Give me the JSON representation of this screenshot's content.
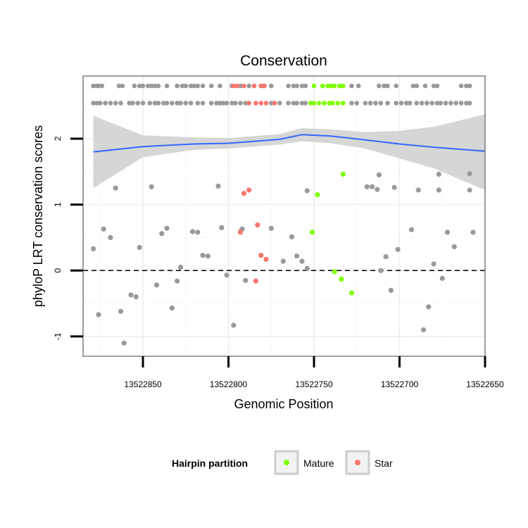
{
  "chart_data": {
    "type": "scatter",
    "title": "Conservation",
    "xlabel": "Genomic Position",
    "ylabel": "phyloP LRT conservation scores",
    "x_reversed": true,
    "xlim": [
      13522650,
      13522885
    ],
    "ylim": [
      -1.3,
      2.95
    ],
    "x_ticks": [
      13522850,
      13522800,
      13522750,
      13522700,
      13522650
    ],
    "x_tick_labels": [
      "13522850",
      "13522800",
      "13522750",
      "13522700",
      "13522650"
    ],
    "y_ticks": [
      -1,
      0,
      1,
      2
    ],
    "y_tick_labels": [
      "-1",
      "0",
      "1",
      "2"
    ],
    "grid": true,
    "reference_line": {
      "y": 0,
      "style": "dashed",
      "color": "#000000"
    },
    "legend": {
      "title": "Hairpin partition",
      "position": "bottom",
      "entries": [
        {
          "label": "Mature",
          "color": "#7fff00"
        },
        {
          "label": "Star",
          "color": "#f8766d"
        }
      ]
    },
    "colors": {
      "other": "#999999",
      "mature": "#7fff00",
      "star": "#f8766d",
      "smooth_line": "#3366ff",
      "ribbon": "#d6d6d6"
    },
    "smooth": {
      "x": [
        13522879,
        13522850,
        13522820,
        13522800,
        13522770,
        13522757,
        13522740,
        13522720,
        13522700,
        13522680,
        13522650
      ],
      "y": [
        1.8,
        1.88,
        1.92,
        1.93,
        1.99,
        2.06,
        2.04,
        1.98,
        1.92,
        1.87,
        1.81
      ],
      "lower": [
        1.25,
        1.72,
        1.83,
        1.85,
        1.91,
        1.96,
        1.93,
        1.85,
        1.7,
        1.55,
        1.22
      ],
      "upper": [
        2.35,
        2.05,
        2.02,
        2.01,
        2.07,
        2.16,
        2.14,
        2.1,
        2.12,
        2.18,
        2.37
      ]
    },
    "series": [
      {
        "name": "Other",
        "color": "#999999",
        "points": [
          [
            13522879,
            0.33
          ],
          [
            13522876,
            -0.67
          ],
          [
            13522873,
            0.63
          ],
          [
            13522869,
            0.5
          ],
          [
            13522866,
            1.25
          ],
          [
            13522863,
            -0.62
          ],
          [
            13522861,
            -1.1
          ],
          [
            13522857,
            -0.37
          ],
          [
            13522854,
            -0.4
          ],
          [
            13522852,
            0.35
          ],
          [
            13522845,
            1.27
          ],
          [
            13522842,
            -0.22
          ],
          [
            13522839,
            0.56
          ],
          [
            13522836,
            0.64
          ],
          [
            13522833,
            -0.57
          ],
          [
            13522830,
            -0.16
          ],
          [
            13522828,
            0.05
          ],
          [
            13522821,
            0.59
          ],
          [
            13522818,
            0.58
          ],
          [
            13522815,
            0.23
          ],
          [
            13522812,
            0.22
          ],
          [
            13522806,
            1.28
          ],
          [
            13522804,
            0.65
          ],
          [
            13522801,
            -0.07
          ],
          [
            13522797,
            -0.83
          ],
          [
            13522793,
            0.59
          ],
          [
            13522792,
            0.63
          ],
          [
            13522790,
            -0.15
          ],
          [
            13522775,
            0.64
          ],
          [
            13522768,
            0.14
          ],
          [
            13522763,
            0.51
          ],
          [
            13522760,
            0.22
          ],
          [
            13522757,
            0.14
          ],
          [
            13522754,
            1.21
          ],
          [
            13522754,
            0.03
          ],
          [
            13522719,
            1.27
          ],
          [
            13522716,
            1.27
          ],
          [
            13522713,
            1.23
          ],
          [
            13522712,
            1.45
          ],
          [
            13522711,
            0.0
          ],
          [
            13522708,
            0.21
          ],
          [
            13522705,
            -0.3
          ],
          [
            13522703,
            1.26
          ],
          [
            13522701,
            0.32
          ],
          [
            13522693,
            0.62
          ],
          [
            13522689,
            1.22
          ],
          [
            13522686,
            -0.9
          ],
          [
            13522683,
            -0.55
          ],
          [
            13522680,
            0.1
          ],
          [
            13522677,
            1.22
          ],
          [
            13522677,
            1.46
          ],
          [
            13522675,
            -0.12
          ],
          [
            13522672,
            0.58
          ],
          [
            13522668,
            0.36
          ],
          [
            13522659,
            1.22
          ],
          [
            13522659,
            1.47
          ],
          [
            13522657,
            0.58
          ]
        ]
      },
      {
        "name": "Mature",
        "color": "#7fff00",
        "points": [
          [
            13522751,
            0.58
          ],
          [
            13522748,
            1.15
          ],
          [
            13522738,
            -0.02
          ],
          [
            13522734,
            -0.13
          ],
          [
            13522733,
            1.46
          ],
          [
            13522728,
            -0.34
          ]
        ]
      },
      {
        "name": "Star",
        "color": "#f8766d",
        "points": [
          [
            13522793,
            0.58
          ],
          [
            13522791,
            1.17
          ],
          [
            13522788,
            1.22
          ],
          [
            13522784,
            -0.16
          ],
          [
            13522783,
            0.69
          ],
          [
            13522781,
            0.23
          ],
          [
            13522778,
            0.17
          ]
        ]
      }
    ],
    "rug": {
      "upper_row_y": 2.8,
      "lower_row_y": 2.54,
      "upper_row": {
        "other": [
          13522879,
          13522877,
          13522876,
          13522874,
          13522864,
          13522862,
          13522855,
          13522852,
          13522850,
          13522847,
          13522845,
          13522843,
          13522841,
          13522836,
          13522830,
          13522827,
          13522825,
          13522822,
          13522820,
          13522818,
          13522815,
          13522810,
          13522805,
          13522798,
          13522793,
          13522791,
          13522788,
          13522785,
          13522780,
          13522775,
          13522765,
          13522762,
          13522760,
          13522757,
          13522755,
          13522745,
          13522740,
          13522735,
          13522728,
          13522724,
          13522712,
          13522709,
          13522707,
          13522702,
          13522692,
          13522690,
          13522685,
          13522680,
          13522678,
          13522664,
          13522661,
          13522659
        ],
        "mature": [
          13522750,
          13522745,
          13522742,
          13522740,
          13522738,
          13522735,
          13522733
        ],
        "star": [
          13522797,
          13522795,
          13522791,
          13522785,
          13522781,
          13522779
        ]
      },
      "lower_row": {
        "other": [
          13522879,
          13522877,
          13522875,
          13522872,
          13522869,
          13522866,
          13522863,
          13522858,
          13522856,
          13522853,
          13522850,
          13522846,
          13522843,
          13522841,
          13522838,
          13522836,
          13522833,
          13522830,
          13522828,
          13522825,
          13522822,
          13522818,
          13522815,
          13522810,
          13522807,
          13522805,
          13522803,
          13522801,
          13522798,
          13522796,
          13522793,
          13522790,
          13522775,
          13522770,
          13522765,
          13522762,
          13522760,
          13522757,
          13522755,
          13522728,
          13522725,
          13522720,
          13522717,
          13522714,
          13522711,
          13522707,
          13522702,
          13522699,
          13522696,
          13522694,
          13522690,
          13522687,
          13522684,
          13522681,
          13522678,
          13522676,
          13522673,
          13522670,
          13522667,
          13522664,
          13522661,
          13522659
        ],
        "mature": [
          13522752,
          13522750,
          13522747,
          13522744,
          13522741,
          13522739,
          13522736,
          13522733
        ],
        "star": [
          13522788,
          13522784,
          13522781,
          13522778,
          13522773
        ]
      }
    }
  }
}
